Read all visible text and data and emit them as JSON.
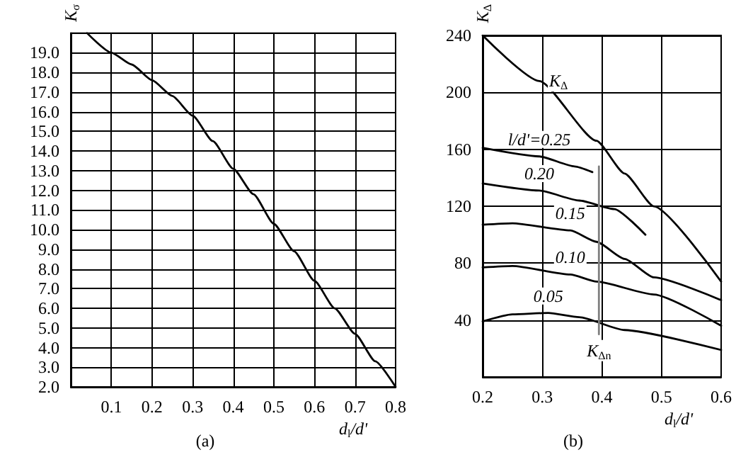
{
  "chart_data": [
    {
      "type": "line",
      "title": "(a)",
      "xlabel": "d$_{l}$/d'",
      "ylabel": "K$_{σ}$",
      "marker": "none",
      "line_style": "solid",
      "grid": true,
      "xlim": [
        0,
        0.8
      ],
      "xticks": [
        0.1,
        0.2,
        0.3,
        0.4,
        0.5,
        0.6,
        0.7,
        0.8
      ],
      "ylim": [
        2,
        20
      ],
      "yticks": [
        {
          "value": 2,
          "label": "2.0"
        },
        {
          "value": 3,
          "label": "3.0"
        },
        {
          "value": 4,
          "label": "4.0"
        },
        {
          "value": 5,
          "label": "5.0"
        },
        {
          "value": 6,
          "label": "6.0"
        },
        {
          "value": 7,
          "label": "7.0"
        },
        {
          "value": 8,
          "label": "8.0"
        },
        {
          "value": 9,
          "label": "9.0"
        },
        {
          "value": 10,
          "label": "10.0"
        },
        {
          "value": 11,
          "label": "11.0"
        },
        {
          "value": 12,
          "label": "12.0"
        },
        {
          "value": 13,
          "label": "13.0"
        },
        {
          "value": 14,
          "label": "14.0"
        },
        {
          "value": 15,
          "label": "15.0"
        },
        {
          "value": 16,
          "label": "16.0"
        },
        {
          "value": 17,
          "label": "17.0"
        },
        {
          "value": 18,
          "label": "18.0"
        },
        {
          "value": 19,
          "label": "19.0"
        },
        {
          "value": 20,
          "label": null
        }
      ],
      "series": [
        {
          "color": "#000000",
          "x": [
            0.04,
            0.1,
            0.15,
            0.2,
            0.25,
            0.3,
            0.35,
            0.4,
            0.45,
            0.5,
            0.55,
            0.6,
            0.65,
            0.7,
            0.75,
            0.8
          ],
          "values": [
            20,
            19.0,
            18.4,
            17.6,
            16.8,
            15.8,
            14.5,
            13.1,
            11.8,
            10.3,
            8.9,
            7.4,
            6.0,
            4.7,
            3.3,
            2.0
          ]
        }
      ]
    },
    {
      "type": "line",
      "title": "(b)",
      "xlabel": "d$_{l}$/d'",
      "ylabel": "K$_{Δ}$",
      "marker": "none",
      "line_style": "solid",
      "grid": true,
      "xlim": [
        0.2,
        0.6
      ],
      "xticks": [
        0.2,
        0.3,
        0.4,
        0.5,
        0.6
      ],
      "ylim": [
        0,
        240
      ],
      "yticks": [
        {
          "value": 0,
          "label": null
        },
        40,
        80,
        120,
        160,
        200,
        240
      ],
      "series": [
        {
          "name": "K$_{Δ}$",
          "color": "#000000",
          "x": [
            0.2,
            0.295,
            0.391,
            0.438,
            0.487,
            0.6
          ],
          "values": [
            240,
            208,
            166,
            143,
            120,
            67
          ]
        },
        {
          "name": "l/d'=0.25",
          "color": "#000000",
          "x": [
            0.2,
            0.295,
            0.354,
            0.384
          ],
          "values": [
            161,
            155,
            148,
            144
          ]
        },
        {
          "name": "0.20",
          "color": "#000000",
          "x": [
            0.2,
            0.295,
            0.362,
            0.421,
            0.473
          ],
          "values": [
            136,
            131,
            124,
            118,
            100
          ]
        },
        {
          "name": "0.15",
          "color": "#000000",
          "x": [
            0.2,
            0.25,
            0.347,
            0.391,
            0.438,
            0.487,
            0.6
          ],
          "values": [
            107,
            108,
            103,
            95,
            83,
            70,
            54
          ]
        },
        {
          "name": "0.10",
          "color": "#000000",
          "x": [
            0.2,
            0.25,
            0.347,
            0.391,
            0.487,
            0.6
          ],
          "values": [
            77,
            78,
            72,
            67,
            58,
            36
          ]
        },
        {
          "name": "0.05",
          "color": "#000000",
          "x": [
            0.2,
            0.25,
            0.31,
            0.362,
            0.438,
            0.6
          ],
          "values": [
            39,
            44,
            45,
            42,
            33,
            19
          ]
        },
        {
          "name": "K$_{Δn}$",
          "color": "#808080",
          "x": [
            0.395,
            0.395
          ],
          "values": [
            148,
            30
          ]
        }
      ]
    }
  ]
}
